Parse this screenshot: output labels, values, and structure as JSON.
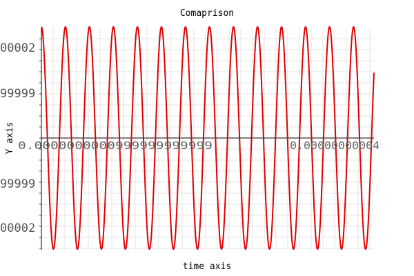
{
  "chart_data": {
    "type": "line",
    "title": "Comaprison",
    "xlabel": "time axis",
    "ylabel": "Y axis",
    "y_tick_labels": [
      "00002",
      "99999",
      "99999",
      "00002"
    ],
    "x_tick_labels": [
      "0.0000000000999999999999",
      "0.00000000004"
    ],
    "series": [
      {
        "color": "#e00000",
        "waveform": "cosine",
        "cycles": 13.85,
        "amplitude": 1.0,
        "start_phase": "peak"
      }
    ],
    "grid": true,
    "background": "#ffffff",
    "axis_color": "#000000",
    "grid_color": "#e6e6e6"
  }
}
